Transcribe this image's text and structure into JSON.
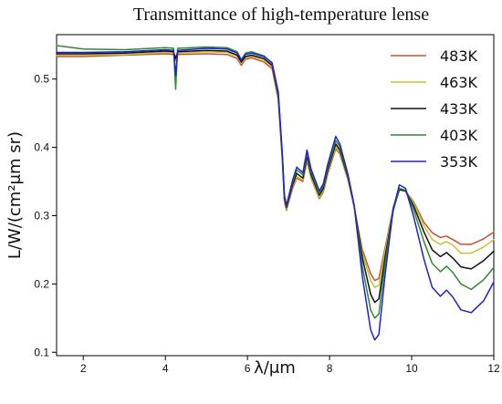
{
  "chart_data": {
    "type": "line",
    "title": "Transmittance of high-temperature lense",
    "xlabel": "λ/μm",
    "ylabel": "L/W/(cm²μm sr)",
    "xlim": [
      1.35,
      12.0
    ],
    "ylim": [
      0.095,
      0.565
    ],
    "x_ticks": [
      2,
      4,
      6,
      8,
      10,
      12
    ],
    "y_ticks": [
      0.1,
      0.2,
      0.3,
      0.4,
      0.5
    ],
    "x_tick_labels": [
      "2",
      "4",
      "6",
      "8",
      "10",
      "12"
    ],
    "y_tick_labels": [
      "0.1",
      "0.2",
      "0.3",
      "0.4",
      "0.5"
    ],
    "grid": false,
    "legend_position": "top-right",
    "x": [
      1.35,
      2.0,
      3.0,
      4.0,
      4.2,
      4.25,
      4.3,
      5.0,
      5.5,
      5.75,
      5.85,
      5.95,
      6.1,
      6.4,
      6.6,
      6.75,
      6.85,
      6.9,
      6.95,
      7.1,
      7.2,
      7.35,
      7.45,
      7.55,
      7.75,
      7.85,
      7.95,
      8.15,
      8.25,
      8.45,
      8.6,
      8.8,
      9.0,
      9.1,
      9.2,
      9.35,
      9.55,
      9.7,
      9.85,
      10.05,
      10.3,
      10.5,
      10.7,
      10.85,
      11.0,
      11.2,
      11.45,
      11.75,
      12.0
    ],
    "series": [
      {
        "name": "483K",
        "color": "#c8503a",
        "values": [
          0.533,
          0.533,
          0.535,
          0.537,
          0.536,
          0.527,
          0.536,
          0.537,
          0.536,
          0.53,
          0.52,
          0.529,
          0.531,
          0.525,
          0.515,
          0.47,
          0.38,
          0.32,
          0.308,
          0.34,
          0.355,
          0.35,
          0.38,
          0.355,
          0.325,
          0.335,
          0.36,
          0.398,
          0.39,
          0.352,
          0.312,
          0.25,
          0.215,
          0.205,
          0.208,
          0.252,
          0.312,
          0.338,
          0.336,
          0.32,
          0.29,
          0.275,
          0.268,
          0.27,
          0.265,
          0.258,
          0.258,
          0.266,
          0.276
        ]
      },
      {
        "name": "463K",
        "color": "#c7c236",
        "values": [
          0.535,
          0.535,
          0.536,
          0.539,
          0.538,
          0.529,
          0.538,
          0.54,
          0.539,
          0.533,
          0.523,
          0.531,
          0.533,
          0.528,
          0.518,
          0.472,
          0.382,
          0.322,
          0.31,
          0.342,
          0.358,
          0.352,
          0.383,
          0.357,
          0.327,
          0.337,
          0.363,
          0.401,
          0.392,
          0.354,
          0.313,
          0.245,
          0.205,
          0.195,
          0.198,
          0.247,
          0.31,
          0.338,
          0.336,
          0.318,
          0.285,
          0.265,
          0.258,
          0.262,
          0.257,
          0.245,
          0.245,
          0.254,
          0.265
        ]
      },
      {
        "name": "433K",
        "color": "#111111",
        "values": [
          0.537,
          0.537,
          0.538,
          0.541,
          0.54,
          0.53,
          0.54,
          0.542,
          0.541,
          0.535,
          0.525,
          0.533,
          0.535,
          0.53,
          0.52,
          0.475,
          0.385,
          0.325,
          0.312,
          0.345,
          0.362,
          0.355,
          0.387,
          0.36,
          0.33,
          0.34,
          0.366,
          0.405,
          0.396,
          0.356,
          0.314,
          0.238,
          0.185,
          0.173,
          0.178,
          0.238,
          0.308,
          0.338,
          0.336,
          0.314,
          0.276,
          0.25,
          0.24,
          0.246,
          0.238,
          0.225,
          0.222,
          0.234,
          0.248
        ]
      },
      {
        "name": "403K",
        "color": "#2e8b2e",
        "values": [
          0.549,
          0.544,
          0.543,
          0.546,
          0.545,
          0.485,
          0.545,
          0.547,
          0.546,
          0.54,
          0.528,
          0.538,
          0.54,
          0.534,
          0.523,
          0.478,
          0.388,
          0.328,
          0.314,
          0.349,
          0.367,
          0.36,
          0.392,
          0.364,
          0.333,
          0.344,
          0.37,
          0.41,
          0.401,
          0.358,
          0.314,
          0.225,
          0.162,
          0.15,
          0.156,
          0.228,
          0.307,
          0.34,
          0.337,
          0.308,
          0.262,
          0.23,
          0.218,
          0.226,
          0.217,
          0.2,
          0.192,
          0.206,
          0.224
        ]
      },
      {
        "name": "353K",
        "color": "#2020d8",
        "values": [
          0.539,
          0.539,
          0.54,
          0.543,
          0.542,
          0.505,
          0.542,
          0.545,
          0.544,
          0.538,
          0.528,
          0.536,
          0.538,
          0.533,
          0.524,
          0.481,
          0.39,
          0.33,
          0.315,
          0.352,
          0.371,
          0.363,
          0.396,
          0.368,
          0.336,
          0.347,
          0.374,
          0.416,
          0.405,
          0.36,
          0.315,
          0.21,
          0.133,
          0.118,
          0.126,
          0.212,
          0.31,
          0.345,
          0.34,
          0.298,
          0.236,
          0.195,
          0.182,
          0.191,
          0.181,
          0.162,
          0.158,
          0.175,
          0.203
        ]
      }
    ]
  }
}
